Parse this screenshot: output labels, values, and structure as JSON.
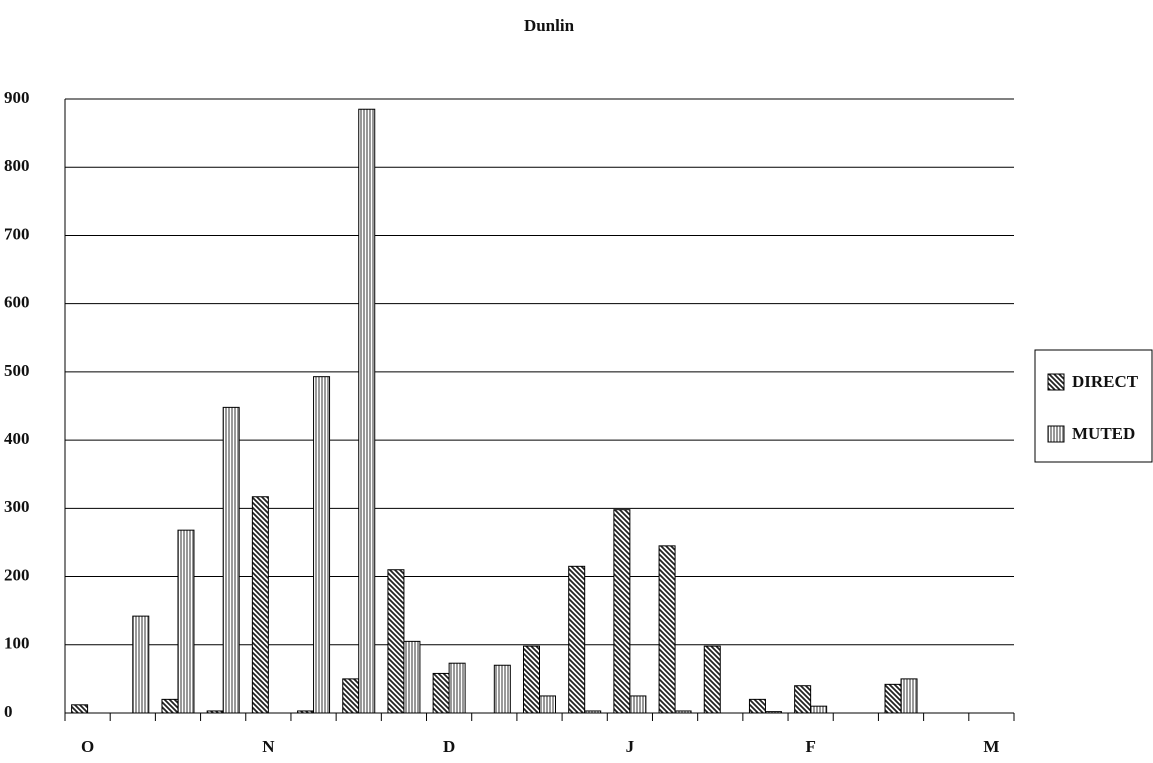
{
  "chart_data": {
    "type": "bar",
    "title": "Dunlin",
    "categories": [
      "O",
      null,
      null,
      null,
      "N",
      null,
      null,
      null,
      "D",
      null,
      null,
      null,
      "J",
      null,
      null,
      null,
      "F",
      null,
      null,
      null,
      "M"
    ],
    "series": [
      {
        "name": "DIRECT",
        "color": "#222222",
        "values": [
          12,
          0,
          20,
          3,
          317,
          3,
          50,
          210,
          58,
          0,
          98,
          215,
          298,
          245,
          98,
          20,
          40,
          0,
          42,
          0,
          0
        ]
      },
      {
        "name": "MUTED",
        "color": "#999999",
        "values": [
          0,
          142,
          268,
          448,
          0,
          493,
          885,
          105,
          73,
          70,
          25,
          3,
          25,
          3,
          0,
          2,
          10,
          0,
          50,
          0,
          0
        ]
      }
    ],
    "ylim": [
      0,
      900
    ],
    "yticks": [
      0,
      100,
      200,
      300,
      400,
      500,
      600,
      700,
      800,
      900
    ],
    "grid": true
  }
}
